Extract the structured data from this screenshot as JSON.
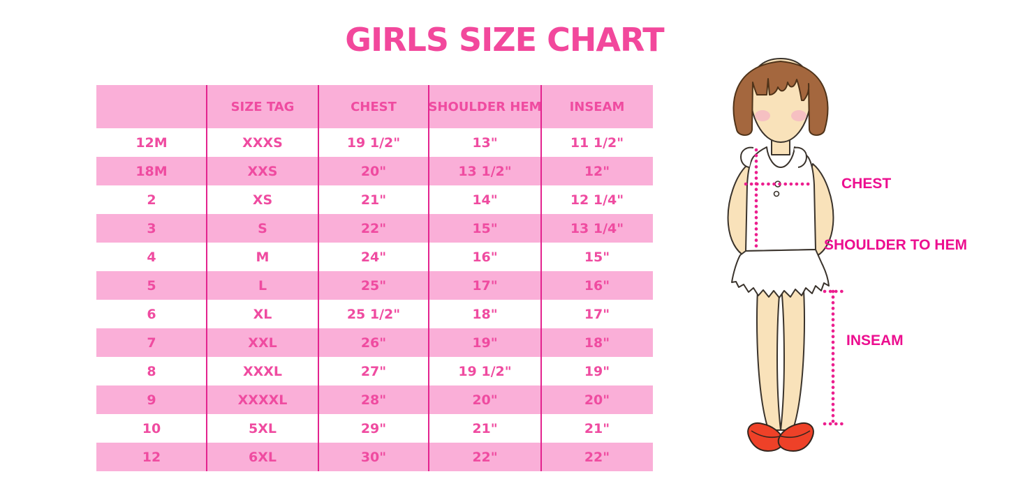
{
  "title": "GIRLS SIZE CHART",
  "colors": {
    "title_pink": "#F2489C",
    "row_pink": "#FAAFD8",
    "table_text_pink": "#EF4BA0",
    "divider_magenta": "#E3238E",
    "label_magenta": "#EC0E8F",
    "dotted_line": "#EC1E8E",
    "shoe_red": "#EE4128",
    "hair_brown": "#A4673E",
    "skin": "#F9E2BA"
  },
  "chart_data": {
    "type": "table",
    "title": "GIRLS SIZE CHART",
    "columns": [
      "",
      "SIZE TAG",
      "CHEST",
      "SHOULDER HEM",
      "INSEAM"
    ],
    "rows": [
      [
        "12M",
        "XXXS",
        "19 1/2\"",
        "13\"",
        "11 1/2\""
      ],
      [
        "18M",
        "XXS",
        "20\"",
        "13 1/2\"",
        "12\""
      ],
      [
        "2",
        "XS",
        "21\"",
        "14\"",
        "12 1/4\""
      ],
      [
        "3",
        "S",
        "22\"",
        "15\"",
        "13 1/4\""
      ],
      [
        "4",
        "M",
        "24\"",
        "16\"",
        "15\""
      ],
      [
        "5",
        "L",
        "25\"",
        "17\"",
        "16\""
      ],
      [
        "6",
        "XL",
        "25 1/2\"",
        "18\"",
        "17\""
      ],
      [
        "7",
        "XXL",
        "26\"",
        "19\"",
        "18\""
      ],
      [
        "8",
        "XXXL",
        "27\"",
        "19 1/2\"",
        "19\""
      ],
      [
        "9",
        "XXXXL",
        "28\"",
        "20\"",
        "20\""
      ],
      [
        "10",
        "5XL",
        "29\"",
        "21\"",
        "21\""
      ],
      [
        "12",
        "6XL",
        "30\"",
        "22\"",
        "22\""
      ]
    ]
  },
  "figure": {
    "labels": {
      "chest": "CHEST",
      "shoulder_to_hem": "SHOULDER TO HEM",
      "inseam": "INSEAM"
    }
  }
}
